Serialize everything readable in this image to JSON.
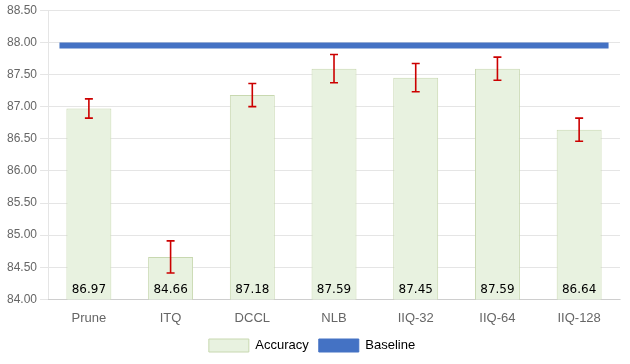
{
  "chart_data": {
    "type": "bar",
    "categories": [
      "Prune",
      "ITQ",
      "DCCL",
      "NLB",
      "IIQ-32",
      "IIQ-64",
      "IIQ-128"
    ],
    "series": [
      {
        "name": "Accuracy",
        "color": "#e8f2e0",
        "values": [
          86.97,
          84.66,
          87.18,
          87.59,
          87.45,
          87.59,
          86.64
        ],
        "errors": [
          0.15,
          0.25,
          0.18,
          0.22,
          0.22,
          0.18,
          0.18
        ]
      }
    ],
    "baseline": {
      "name": "Baseline",
      "value": 87.95,
      "color": "#4472c4"
    },
    "ylim": [
      84.0,
      88.5
    ],
    "yticks": [
      {
        "value": 84.0,
        "label": "84.00"
      },
      {
        "value": 84.5,
        "label": "84.50"
      },
      {
        "value": 85.0,
        "label": "85.00"
      },
      {
        "value": 85.5,
        "label": "85.50"
      },
      {
        "value": 86.0,
        "label": "86.00"
      },
      {
        "value": 86.5,
        "label": "86.50"
      },
      {
        "value": 87.0,
        "label": "87.00"
      },
      {
        "value": 87.5,
        "label": "87.50"
      },
      {
        "value": 88.0,
        "label": "88.00"
      },
      {
        "value": 88.5,
        "label": "88.50"
      }
    ],
    "grid": true,
    "legend": "bottom",
    "data_labels": true
  }
}
